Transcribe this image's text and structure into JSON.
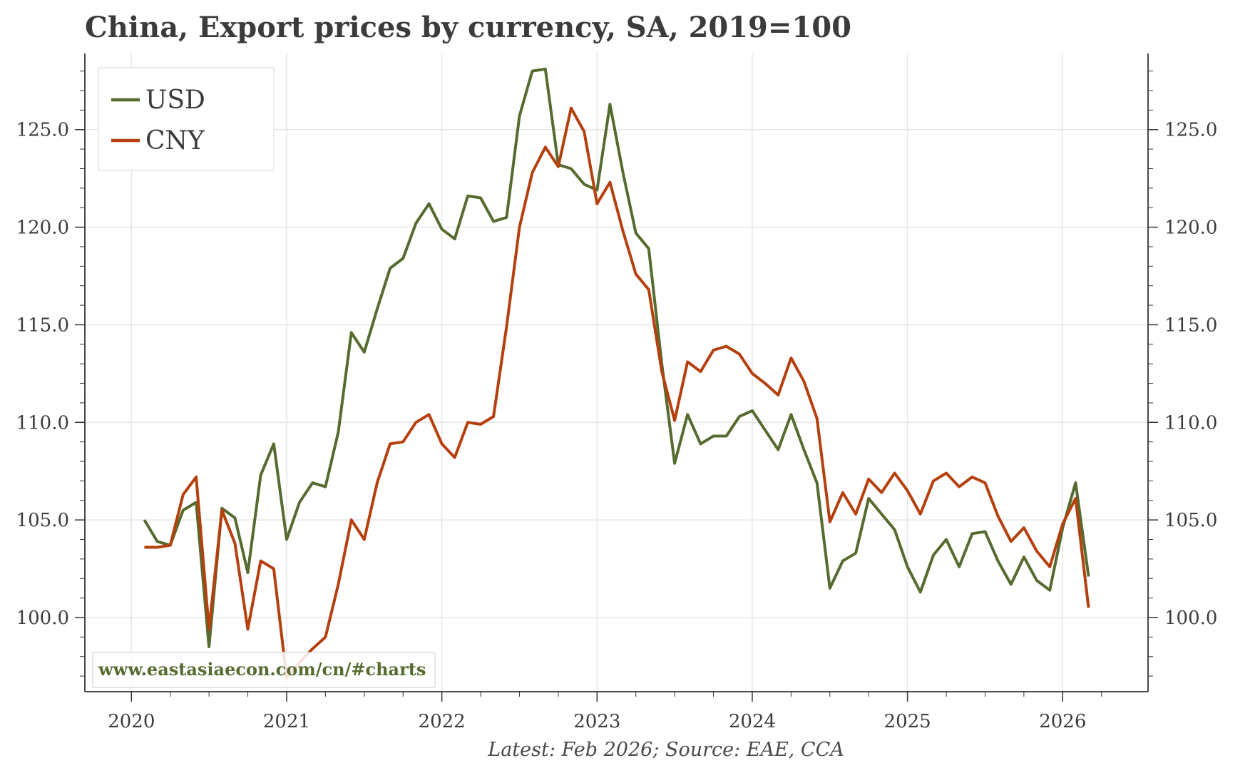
{
  "chart_data": {
    "type": "line",
    "title": "China, Export prices by currency, SA, 2019=100",
    "source": "Latest: Feb 2026; Source: EAE, CCA",
    "watermark": "www.eastasiaecon.com/cn/#charts",
    "xlabel": "",
    "ylabel": "",
    "x_ticks": [
      "2020",
      "2021",
      "2022",
      "2023",
      "2024",
      "2025",
      "2026"
    ],
    "y_ticks": [
      "100.0",
      "105.0",
      "110.0",
      "115.0",
      "120.0",
      "125.0"
    ],
    "y_tick_values": [
      100,
      105,
      110,
      115,
      120,
      125
    ],
    "xlim": [
      2019.7,
      2026.55
    ],
    "ylim": [
      96.2,
      128.9
    ],
    "grid": true,
    "legend_position": "top-left",
    "x": [
      2020.083,
      2020.167,
      2020.25,
      2020.333,
      2020.417,
      2020.5,
      2020.583,
      2020.667,
      2020.75,
      2020.833,
      2020.917,
      2021.0,
      2021.083,
      2021.167,
      2021.25,
      2021.333,
      2021.417,
      2021.5,
      2021.583,
      2021.667,
      2021.75,
      2021.833,
      2021.917,
      2022.0,
      2022.083,
      2022.167,
      2022.25,
      2022.333,
      2022.417,
      2022.5,
      2022.583,
      2022.667,
      2022.75,
      2022.833,
      2022.917,
      2023.0,
      2023.083,
      2023.167,
      2023.25,
      2023.333,
      2023.417,
      2023.5,
      2023.583,
      2023.667,
      2023.75,
      2023.833,
      2023.917,
      2024.0,
      2024.083,
      2024.167,
      2024.25,
      2024.333,
      2024.417,
      2024.5,
      2024.583,
      2024.667,
      2024.75,
      2024.833,
      2024.917,
      2025.0,
      2025.083,
      2025.167,
      2025.25,
      2025.333,
      2025.417,
      2025.5,
      2025.583,
      2025.667,
      2025.75,
      2025.833,
      2025.917,
      2026.0,
      2026.083,
      2026.167
    ],
    "series": [
      {
        "name": "USD",
        "color": "#556b2f",
        "values": [
          105.0,
          103.9,
          103.7,
          105.5,
          105.9,
          98.5,
          105.6,
          105.1,
          102.3,
          107.3,
          108.9,
          104.0,
          105.9,
          106.9,
          106.7,
          109.5,
          114.6,
          113.6,
          115.8,
          117.9,
          118.4,
          120.2,
          121.2,
          119.9,
          119.4,
          121.6,
          121.5,
          120.3,
          120.5,
          125.7,
          128.0,
          128.1,
          123.2,
          123.0,
          122.2,
          121.9,
          126.3,
          122.8,
          119.7,
          118.9,
          113.0,
          107.9,
          110.4,
          108.9,
          109.3,
          109.3,
          110.3,
          110.6,
          109.6,
          108.6,
          110.4,
          108.6,
          106.9,
          101.5,
          102.9,
          103.3,
          106.1,
          105.3,
          104.5,
          102.6,
          101.3,
          103.2,
          104.0,
          102.6,
          104.3,
          104.4,
          102.9,
          101.7,
          103.1,
          101.9,
          101.4,
          104.6,
          106.9,
          102.1
        ]
      },
      {
        "name": "CNY",
        "color": "#b5400e",
        "values": [
          103.6,
          103.6,
          103.7,
          106.3,
          107.2,
          99.4,
          105.5,
          103.8,
          99.4,
          102.9,
          102.5,
          96.9,
          97.7,
          98.4,
          99.0,
          101.7,
          105.0,
          104.0,
          106.9,
          108.9,
          109.0,
          110.0,
          110.4,
          108.9,
          108.2,
          110.0,
          109.9,
          110.3,
          114.9,
          120.0,
          122.8,
          124.1,
          123.1,
          126.1,
          124.9,
          121.2,
          122.3,
          119.8,
          117.6,
          116.8,
          112.6,
          110.1,
          113.1,
          112.6,
          113.7,
          113.9,
          113.5,
          112.5,
          112.0,
          111.4,
          113.3,
          112.1,
          110.2,
          104.9,
          106.4,
          105.3,
          107.1,
          106.4,
          107.4,
          106.5,
          105.3,
          107.0,
          107.4,
          106.7,
          107.2,
          106.9,
          105.2,
          103.9,
          104.6,
          103.4,
          102.6,
          104.8,
          106.1,
          100.5
        ]
      }
    ]
  }
}
